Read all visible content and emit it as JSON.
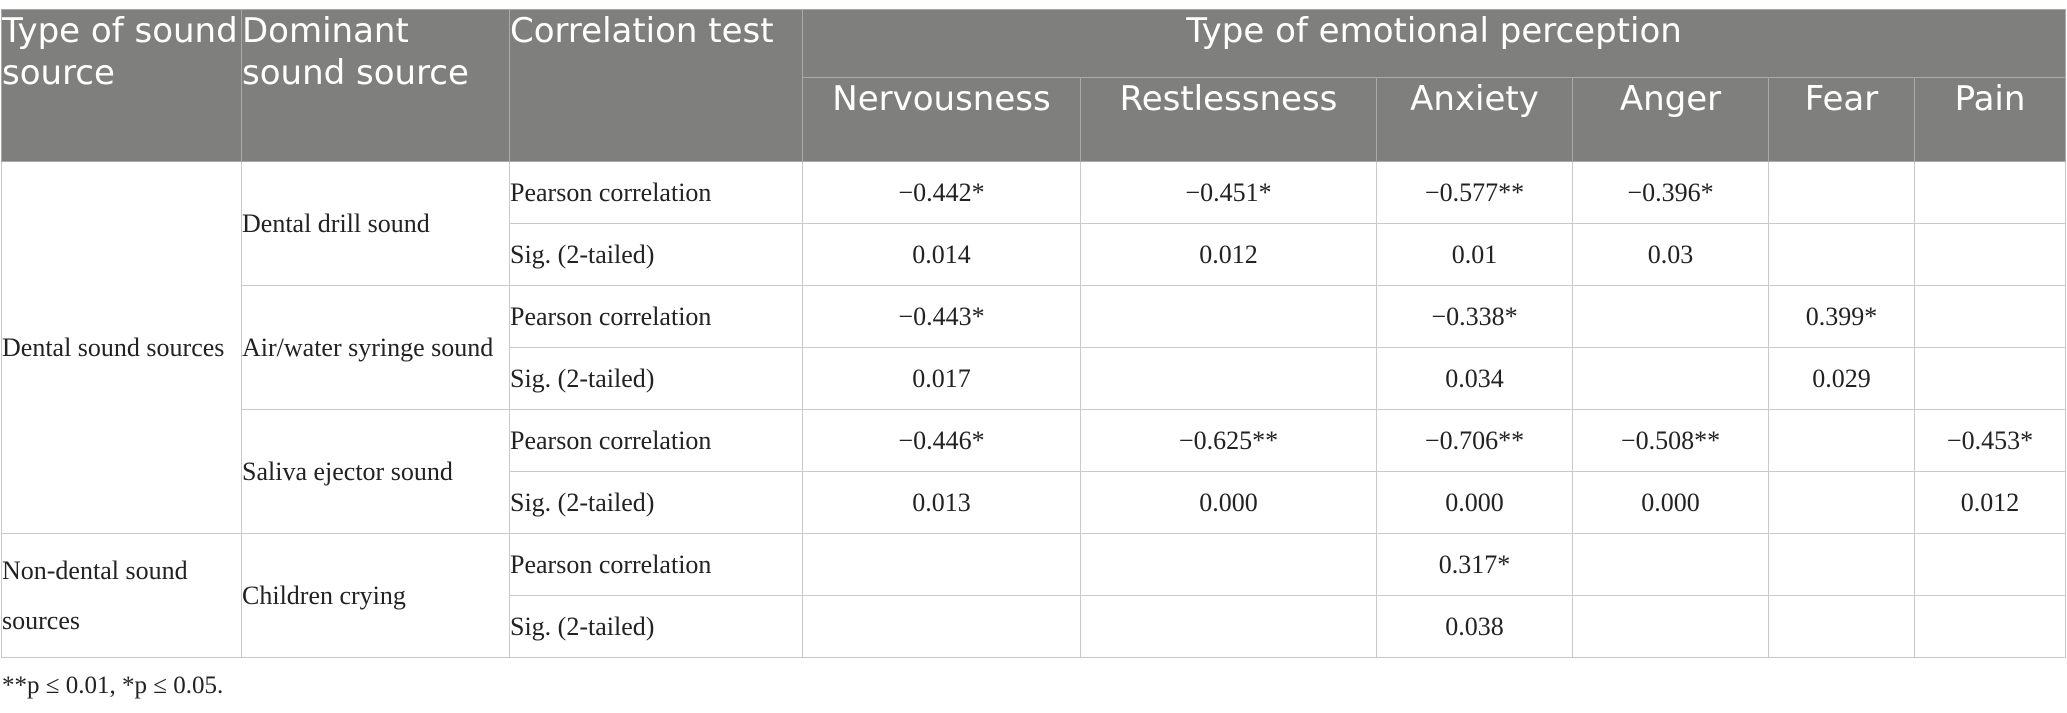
{
  "table": {
    "headers": {
      "col1": "Type of sound source",
      "col2": "Dominant sound source",
      "col3": "Correlation test",
      "group": "Type of emotional perception",
      "emotions": [
        "Nervousness",
        "Restlessness",
        "Anxiety",
        "Anger",
        "Fear",
        "Pain"
      ]
    },
    "categories": [
      "Dental sound sources",
      "Non-dental sound sources"
    ],
    "sources": [
      "Dental drill sound",
      "Air/water syringe sound",
      "Saliva ejector sound",
      "Children crying"
    ],
    "tests": {
      "pearson": "Pearson correlation",
      "sig": "Sig. (2-tailed)"
    },
    "rows": [
      {
        "values": [
          "−0.442*",
          "−0.451*",
          "−0.577**",
          "−0.396*",
          "",
          ""
        ]
      },
      {
        "values": [
          "0.014",
          "0.012",
          "0.01",
          "0.03",
          "",
          ""
        ]
      },
      {
        "values": [
          "−0.443*",
          "",
          "−0.338*",
          "",
          "0.399*",
          ""
        ]
      },
      {
        "values": [
          "0.017",
          "",
          "0.034",
          "",
          "0.029",
          ""
        ]
      },
      {
        "values": [
          "−0.446*",
          "−0.625**",
          "−0.706**",
          "−0.508**",
          "",
          "−0.453*"
        ]
      },
      {
        "values": [
          "0.013",
          "0.000",
          "0.000",
          "0.000",
          "",
          "0.012"
        ]
      },
      {
        "values": [
          "",
          "",
          "0.317*",
          "",
          "",
          ""
        ]
      },
      {
        "values": [
          "",
          "",
          "0.038",
          "",
          "",
          ""
        ]
      }
    ]
  },
  "footnote": "**p ≤ 0.01, *p ≤ 0.05."
}
